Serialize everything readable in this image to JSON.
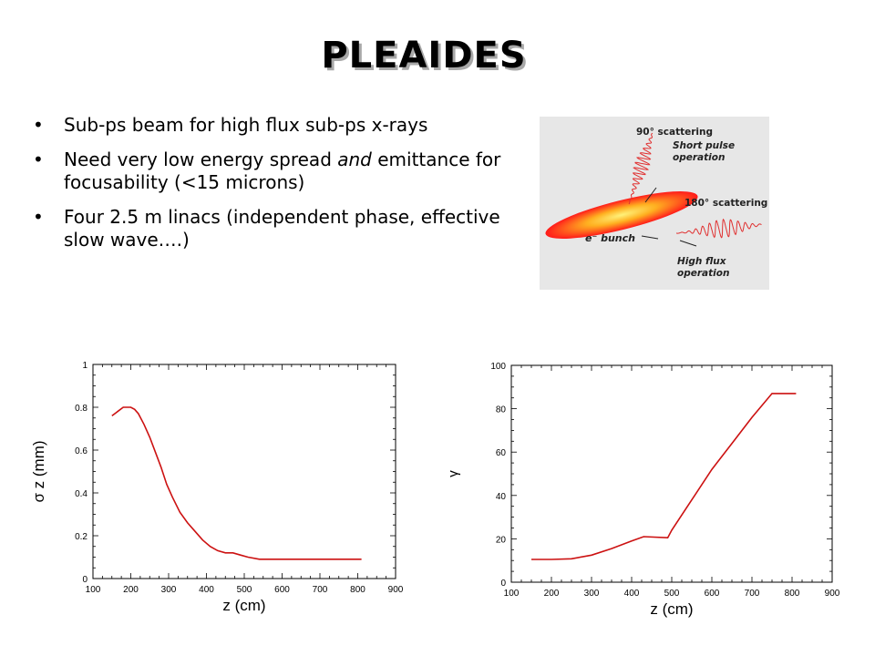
{
  "slide": {
    "title": "PLEAIDES",
    "bullets": [
      {
        "dot": "•",
        "before": "Sub-ps beam for high flux sub-ps x-rays",
        "em": "",
        "after": ""
      },
      {
        "dot": "•",
        "before": "Need very low energy spread ",
        "em": "and",
        "after": " emittance for focusability (<15 microns)"
      },
      {
        "dot": "•",
        "before": "Four 2.5 m linacs (independent phase, effective slow wave….)",
        "em": "",
        "after": ""
      }
    ]
  },
  "figure": {
    "label_90": "90° scattering",
    "label_short1": "Short pulse",
    "label_short2": "operation",
    "label_180": "180° scattering",
    "label_bunch": "e⁻ bunch",
    "label_high1": "High flux",
    "label_high2": "operation",
    "colors": {
      "bunch_outer": "#ff1a1a",
      "bunch_inner": "#ffd24a",
      "wave": "#e03030",
      "background": "#e7e7e7"
    }
  },
  "chart_data": [
    {
      "type": "line",
      "xlabel": "z (cm)",
      "ylabel": "σ z (mm)",
      "xlim": [
        100,
        900
      ],
      "ylim": [
        0,
        1
      ],
      "xticks": [
        100,
        200,
        300,
        400,
        500,
        600,
        700,
        800,
        900
      ],
      "yticks": [
        0,
        0.2,
        0.4,
        0.6,
        0.8,
        1
      ],
      "ytick_labels": [
        "0",
        "0.2",
        "0.4",
        "0.6",
        "0.8",
        "1"
      ],
      "color": "#cc1111",
      "series": [
        {
          "x": [
            150,
            165,
            180,
            190,
            200,
            210,
            220,
            235,
            250,
            265,
            280,
            295,
            310,
            330,
            350,
            370,
            390,
            410,
            430,
            450,
            470,
            490,
            510,
            540,
            600,
            700,
            810
          ],
          "y": [
            0.76,
            0.78,
            0.8,
            0.8,
            0.8,
            0.79,
            0.77,
            0.72,
            0.66,
            0.59,
            0.52,
            0.44,
            0.38,
            0.31,
            0.26,
            0.22,
            0.18,
            0.15,
            0.13,
            0.12,
            0.12,
            0.11,
            0.1,
            0.09,
            0.09,
            0.09,
            0.09
          ]
        }
      ]
    },
    {
      "type": "line",
      "xlabel": "z (cm)",
      "ylabel": "γ",
      "xlim": [
        100,
        900
      ],
      "ylim": [
        0,
        100
      ],
      "xticks": [
        100,
        200,
        300,
        400,
        500,
        600,
        700,
        800,
        900
      ],
      "yticks": [
        0,
        20,
        40,
        60,
        80,
        100
      ],
      "ytick_labels": [
        "0",
        "20",
        "40",
        "60",
        "80",
        "100"
      ],
      "color": "#cc1111",
      "series": [
        {
          "x": [
            150,
            200,
            250,
            300,
            350,
            400,
            430,
            490,
            500,
            550,
            600,
            650,
            700,
            750,
            810
          ],
          "y": [
            10.5,
            10.5,
            10.8,
            12.5,
            15.5,
            19,
            21,
            20.5,
            24,
            38,
            52,
            64,
            76,
            87,
            87
          ]
        }
      ]
    }
  ]
}
